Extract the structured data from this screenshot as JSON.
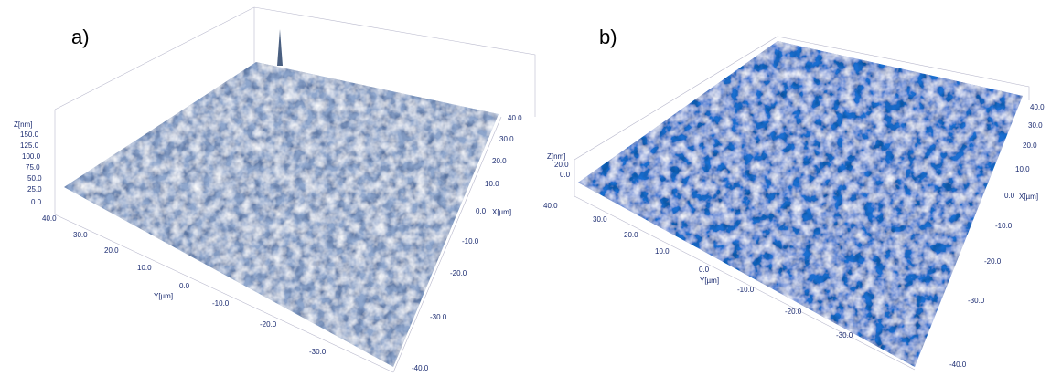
{
  "panels": [
    {
      "label": "a)",
      "z_axis": {
        "label": "Z[nm]",
        "ticks": [
          "150.0",
          "125.0",
          "100.0",
          "75.0",
          "50.0",
          "25.0",
          "0.0"
        ]
      },
      "y_axis": {
        "label": "Y[µm]",
        "ticks": [
          "40.0",
          "30.0",
          "20.0",
          "10.0",
          "0.0",
          "-10.0",
          "-20.0",
          "-30.0"
        ]
      },
      "x_axis": {
        "label": "X[µm]",
        "ticks": [
          "40.0",
          "30.0",
          "20.0",
          "10.0",
          "0.0",
          "-10.0",
          "-20.0",
          "-30.0",
          "-40.0"
        ]
      }
    },
    {
      "label": "b)",
      "z_axis": {
        "label": "Z[nm]",
        "ticks": [
          "20.0",
          "0.0"
        ]
      },
      "y_axis": {
        "label": "Y[µm]",
        "ticks": [
          "40.0",
          "30.0",
          "20.0",
          "10.0",
          "0.0",
          "-10.0",
          "-20.0",
          "-30.0"
        ]
      },
      "x_axis": {
        "label": "X[µm]",
        "ticks": [
          "40.0",
          "30.0",
          "20.0",
          "10.0",
          "0.0",
          "-10.0",
          "-20.0",
          "-30.0",
          "-40.0"
        ]
      }
    }
  ]
}
